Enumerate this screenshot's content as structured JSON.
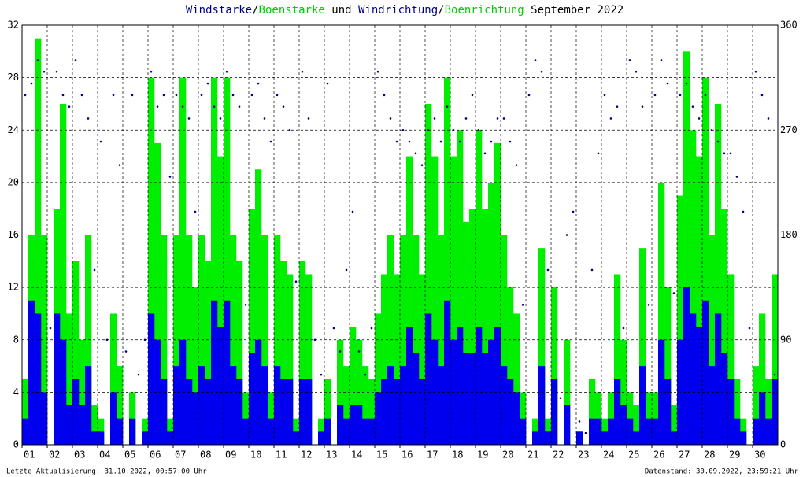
{
  "chart_data": {
    "type": "wind",
    "title_parts": [
      {
        "text": "Windstarke",
        "color": "#00008b"
      },
      {
        "text": "/",
        "color": "#000000"
      },
      {
        "text": "Boenstarke",
        "color": "#00cc00"
      },
      {
        "text": " und ",
        "color": "#000000"
      },
      {
        "text": "Windrichtung",
        "color": "#00008b"
      },
      {
        "text": "/",
        "color": "#000000"
      },
      {
        "text": "Boenrichtung",
        "color": "#00cc00"
      },
      {
        "text": " September 2022",
        "color": "#000000"
      }
    ],
    "footer_left": "Letzte Aktualisierung: 31.10.2022, 00:57:00 Uhr",
    "footer_right": "Datenstand: 30.09.2022, 23:59:21 Uhr",
    "xlim": [
      1,
      31
    ],
    "xticks": [
      {
        "value": 1,
        "label": "01"
      },
      {
        "value": 2,
        "label": "02"
      },
      {
        "value": 3,
        "label": "03"
      },
      {
        "value": 4,
        "label": "04"
      },
      {
        "value": 5,
        "label": "05"
      },
      {
        "value": 6,
        "label": "06"
      },
      {
        "value": 7,
        "label": "07"
      },
      {
        "value": 8,
        "label": "08"
      },
      {
        "value": 9,
        "label": "09"
      },
      {
        "value": 10,
        "label": "10"
      },
      {
        "value": 11,
        "label": "11"
      },
      {
        "value": 12,
        "label": "12"
      },
      {
        "value": 13,
        "label": "13"
      },
      {
        "value": 14,
        "label": "14"
      },
      {
        "value": 15,
        "label": "15"
      },
      {
        "value": 16,
        "label": "16"
      },
      {
        "value": 17,
        "label": "17"
      },
      {
        "value": 18,
        "label": "18"
      },
      {
        "value": 19,
        "label": "19"
      },
      {
        "value": 20,
        "label": "20"
      },
      {
        "value": 21,
        "label": "21"
      },
      {
        "value": 22,
        "label": "22"
      },
      {
        "value": 23,
        "label": "23"
      },
      {
        "value": 24,
        "label": "24"
      },
      {
        "value": 25,
        "label": "25"
      },
      {
        "value": 26,
        "label": "26"
      },
      {
        "value": 27,
        "label": "27"
      },
      {
        "value": 28,
        "label": "28"
      },
      {
        "value": 29,
        "label": "29"
      },
      {
        "value": 30,
        "label": "30"
      }
    ],
    "ylim": [
      0,
      32
    ],
    "yticks": [
      0,
      4,
      8,
      12,
      16,
      20,
      24,
      28,
      32
    ],
    "y2lim": [
      0,
      360
    ],
    "y2ticks": [
      0,
      90,
      180,
      270,
      360
    ],
    "grid": true,
    "x": [
      1,
      1.25,
      1.5,
      1.75,
      2,
      2.25,
      2.5,
      2.75,
      3,
      3.25,
      3.5,
      3.75,
      4,
      4.25,
      4.5,
      4.75,
      5,
      5.25,
      5.5,
      5.75,
      6,
      6.25,
      6.5,
      6.75,
      7,
      7.25,
      7.5,
      7.75,
      8,
      8.25,
      8.5,
      8.75,
      9,
      9.25,
      9.5,
      9.75,
      10,
      10.25,
      10.5,
      10.75,
      11,
      11.25,
      11.5,
      11.75,
      12,
      12.25,
      12.5,
      12.75,
      13,
      13.25,
      13.5,
      13.75,
      14,
      14.25,
      14.5,
      14.75,
      15,
      15.25,
      15.5,
      15.75,
      16,
      16.25,
      16.5,
      16.75,
      17,
      17.25,
      17.5,
      17.75,
      18,
      18.25,
      18.5,
      18.75,
      19,
      19.25,
      19.5,
      19.75,
      20,
      20.25,
      20.5,
      20.75,
      21,
      21.25,
      21.5,
      21.75,
      22,
      22.25,
      22.5,
      22.75,
      23,
      23.25,
      23.5,
      23.75,
      24,
      24.25,
      24.5,
      24.75,
      25,
      25.25,
      25.5,
      25.75,
      26,
      26.25,
      26.5,
      26.75,
      27,
      27.25,
      27.5,
      27.75,
      28,
      28.25,
      28.5,
      28.75,
      29,
      29.25,
      29.5,
      29.75,
      30,
      30.25,
      30.5,
      30.75
    ],
    "series": [
      {
        "name": "Boenstarke",
        "color": "#00ee00",
        "kind": "bar",
        "values": [
          5,
          16,
          31,
          16,
          0,
          18,
          26,
          10,
          14,
          8,
          16,
          3,
          2,
          0,
          10,
          6,
          0,
          4,
          0,
          2,
          28,
          23,
          16,
          2,
          16,
          28,
          16,
          12,
          16,
          14,
          28,
          22,
          28,
          16,
          14,
          4,
          18,
          21,
          16,
          4,
          16,
          14,
          13,
          2,
          14,
          13,
          0,
          2,
          5,
          0,
          8,
          6,
          9,
          8,
          6,
          5,
          10,
          13,
          16,
          13,
          16,
          22,
          16,
          13,
          26,
          22,
          16,
          28,
          22,
          24,
          17,
          18,
          24,
          18,
          20,
          23,
          16,
          12,
          10,
          4,
          0,
          2,
          15,
          2,
          12,
          0,
          8,
          0,
          1,
          0,
          5,
          4,
          2,
          4,
          13,
          8,
          4,
          3,
          15,
          4,
          4,
          20,
          12,
          3,
          19,
          30,
          24,
          22,
          28,
          16,
          26,
          18,
          13,
          5,
          2,
          0,
          6,
          10,
          5,
          13
        ]
      },
      {
        "name": "Windstarke",
        "color": "#0000ee",
        "kind": "bar",
        "values": [
          2,
          11,
          10,
          4,
          0,
          10,
          8,
          3,
          5,
          3,
          6,
          1,
          1,
          0,
          4,
          2,
          0,
          2,
          0,
          1,
          10,
          8,
          5,
          1,
          6,
          8,
          5,
          4,
          6,
          5,
          11,
          9,
          11,
          6,
          5,
          2,
          7,
          8,
          6,
          2,
          6,
          5,
          5,
          1,
          5,
          5,
          0,
          1,
          2,
          0,
          3,
          2,
          3,
          3,
          2,
          2,
          4,
          5,
          6,
          5,
          6,
          9,
          7,
          5,
          10,
          8,
          6,
          11,
          8,
          9,
          7,
          7,
          9,
          7,
          8,
          9,
          6,
          5,
          4,
          2,
          0,
          1,
          6,
          1,
          5,
          0,
          3,
          0,
          1,
          0,
          2,
          2,
          1,
          2,
          5,
          3,
          2,
          1,
          6,
          2,
          2,
          8,
          5,
          1,
          8,
          12,
          10,
          9,
          11,
          6,
          10,
          7,
          5,
          2,
          1,
          0,
          2,
          4,
          2,
          5
        ]
      },
      {
        "name": "Windrichtung",
        "color": "#00008b",
        "kind": "dot",
        "axis": "y2",
        "values": [
          300,
          310,
          330,
          320,
          100,
          320,
          300,
          290,
          330,
          300,
          280,
          150,
          260,
          90,
          300,
          240,
          80,
          300,
          60,
          90,
          320,
          290,
          300,
          230,
          300,
          290,
          280,
          200,
          300,
          310,
          290,
          280,
          320,
          300,
          290,
          120,
          300,
          310,
          280,
          260,
          300,
          290,
          270,
          140,
          320,
          280,
          90,
          60,
          310,
          100,
          80,
          150,
          200,
          80,
          60,
          100,
          320,
          300,
          280,
          260,
          270,
          260,
          250,
          240,
          270,
          280,
          260,
          290,
          270,
          260,
          280,
          300,
          270,
          250,
          260,
          280,
          280,
          260,
          240,
          120,
          300,
          330,
          320,
          150,
          50,
          40,
          180,
          200,
          20,
          10,
          150,
          250,
          300,
          280,
          290,
          100,
          330,
          320,
          290,
          120,
          300,
          330,
          310,
          130,
          300,
          310,
          290,
          280,
          300,
          270,
          260,
          250,
          250,
          230,
          200,
          100,
          320,
          300,
          280,
          60
        ]
      }
    ]
  }
}
